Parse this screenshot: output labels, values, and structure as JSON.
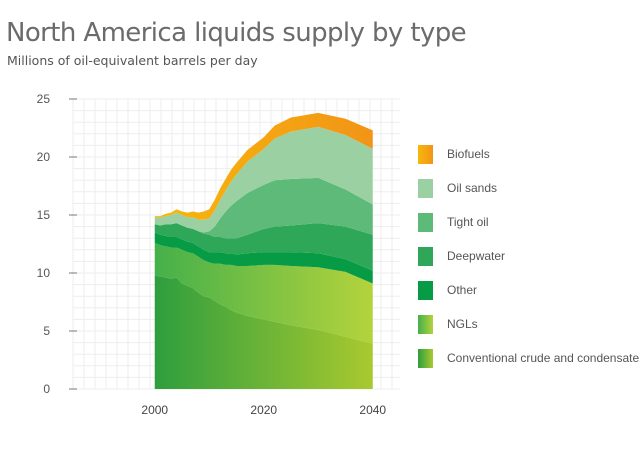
{
  "title": "North America liquids supply by type",
  "subtitle": "Millions of oil-equivalent barrels per day",
  "chart_data": {
    "type": "area",
    "stacked": true,
    "x": [
      1995,
      2000,
      2001,
      2002,
      2003,
      2004,
      2005,
      2006,
      2007,
      2008,
      2009,
      2010,
      2011,
      2012,
      2013,
      2014,
      2015,
      2017,
      2020,
      2022,
      2025,
      2030,
      2035,
      2040
    ],
    "x_ticks": [
      "2000",
      "2020",
      "2040"
    ],
    "y_ticks": [
      "0",
      "5",
      "10",
      "15",
      "20",
      "25"
    ],
    "ylim": [
      0,
      25
    ],
    "xlim": [
      1985,
      2045
    ],
    "grid": true,
    "legend_position": "right",
    "series": [
      {
        "name": "Conventional crude and condensate",
        "color": "#2e9e3e",
        "color_end": "#a9c92f",
        "values": [
          null,
          9.8,
          9.7,
          9.6,
          9.5,
          9.6,
          9.1,
          8.9,
          8.7,
          8.3,
          8.0,
          7.9,
          7.6,
          7.3,
          7.1,
          6.8,
          6.6,
          6.3,
          6.0,
          5.8,
          5.5,
          5.1,
          4.5,
          3.9
        ]
      },
      {
        "name": "NGLs",
        "color": "#45b04a",
        "color_end": "#b4d33c",
        "values": [
          null,
          2.8,
          2.7,
          2.7,
          2.7,
          2.6,
          2.9,
          2.9,
          3.0,
          3.1,
          3.1,
          3.0,
          3.2,
          3.5,
          3.6,
          3.9,
          4.0,
          4.3,
          4.7,
          4.9,
          5.1,
          5.4,
          5.6,
          5.2
        ]
      },
      {
        "name": "Other",
        "color": "#089b45",
        "values": [
          null,
          0.9,
          0.9,
          0.9,
          0.9,
          0.9,
          0.9,
          0.9,
          0.9,
          0.9,
          0.9,
          0.9,
          1.0,
          1.0,
          1.0,
          1.0,
          1.0,
          1.1,
          1.1,
          1.1,
          1.2,
          1.2,
          1.1,
          1.1
        ]
      },
      {
        "name": "Deepwater",
        "color": "#2ea858",
        "values": [
          null,
          0.7,
          0.8,
          1.0,
          1.1,
          1.2,
          1.2,
          1.2,
          1.2,
          1.3,
          1.4,
          1.5,
          1.3,
          1.3,
          1.3,
          1.3,
          1.4,
          1.6,
          2.0,
          2.2,
          2.3,
          2.6,
          2.8,
          3.1
        ]
      },
      {
        "name": "Tight oil",
        "color": "#5dba78",
        "values": [
          null,
          0.0,
          0.0,
          0.0,
          0.0,
          0.0,
          0.0,
          0.0,
          0.0,
          0.0,
          0.1,
          0.3,
          0.9,
          1.6,
          2.3,
          2.8,
          3.2,
          3.6,
          3.8,
          4.0,
          4.0,
          3.9,
          3.2,
          2.6
        ]
      },
      {
        "name": "Oil sands",
        "color": "#9bd1a2",
        "values": [
          null,
          0.6,
          0.7,
          0.7,
          0.8,
          0.9,
          0.9,
          0.9,
          1.0,
          1.0,
          1.1,
          1.1,
          1.4,
          1.6,
          1.8,
          2.1,
          2.3,
          2.7,
          3.1,
          3.6,
          4.1,
          4.4,
          4.7,
          4.8
        ]
      },
      {
        "name": "Biofuels",
        "color": "#f7b70c",
        "color_end": "#f29417",
        "values": [
          null,
          0.1,
          0.1,
          0.2,
          0.2,
          0.3,
          0.3,
          0.4,
          0.5,
          0.6,
          0.7,
          0.8,
          0.9,
          1.0,
          1.0,
          1.0,
          1.0,
          1.0,
          1.0,
          1.1,
          1.2,
          1.2,
          1.4,
          1.6
        ]
      }
    ]
  }
}
